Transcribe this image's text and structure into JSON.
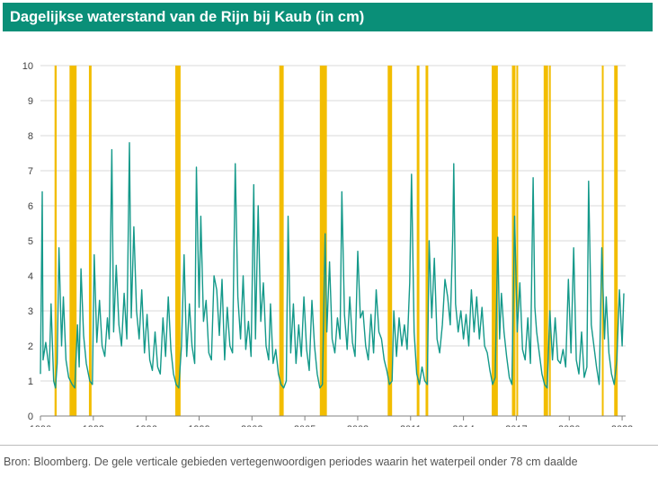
{
  "header": {
    "title": "Dagelijkse waterstand van de Rijn bij Kaub (in cm)"
  },
  "footer": {
    "source": "Bron: Bloomberg. De gele verticale gebieden vertegenwoordigen periodes waarin het waterpeil onder 78 cm daalde"
  },
  "colors": {
    "line": "#14998a",
    "highlight": "#f2bd00",
    "title_bg": "#0a8f78",
    "axis_text": "#404040"
  },
  "chart_data": {
    "type": "line",
    "title": "Dagelijkse waterstand van de Rijn bij Kaub (in cm)",
    "xlabel": "",
    "ylabel": "",
    "xlim": [
      1990,
      2023.2
    ],
    "ylim": [
      0,
      10
    ],
    "y_ticks": [
      "0",
      "1",
      "2",
      "3",
      "4",
      "5",
      "6",
      "7",
      "8",
      "9",
      "10"
    ],
    "x_ticks": [
      "1990",
      "1993",
      "1996",
      "1999",
      "2002",
      "2005",
      "2008",
      "2011",
      "2014",
      "2017",
      "2020",
      "2023"
    ],
    "gridlines": "horizontal",
    "low_water_periods": [
      [
        1990.8,
        1990.92
      ],
      [
        1991.65,
        1992.05
      ],
      [
        1992.75,
        1992.9
      ],
      [
        1997.65,
        1997.95
      ],
      [
        2003.55,
        2003.8
      ],
      [
        2005.85,
        2006.25
      ],
      [
        2009.7,
        2009.95
      ],
      [
        2011.35,
        2011.5
      ],
      [
        2011.85,
        2012.0
      ],
      [
        2015.6,
        2015.95
      ],
      [
        2016.75,
        2016.95
      ],
      [
        2017.0,
        2017.1
      ],
      [
        2018.55,
        2018.8
      ],
      [
        2018.85,
        2018.95
      ],
      [
        2021.85,
        2021.95
      ],
      [
        2022.55,
        2022.75
      ]
    ],
    "series": [
      {
        "name": "Waterstand Kaub",
        "x": [
          1990.0,
          1990.1,
          1990.15,
          1990.3,
          1990.5,
          1990.6,
          1990.75,
          1990.85,
          1990.95,
          1991.05,
          1991.2,
          1991.3,
          1991.45,
          1991.6,
          1991.8,
          1991.95,
          1992.1,
          1992.2,
          1992.3,
          1992.45,
          1992.6,
          1992.8,
          1992.95,
          1993.05,
          1993.2,
          1993.35,
          1993.5,
          1993.65,
          1993.8,
          1993.9,
          1994.05,
          1994.15,
          1994.3,
          1994.45,
          1994.6,
          1994.75,
          1994.9,
          1995.05,
          1995.15,
          1995.3,
          1995.45,
          1995.6,
          1995.75,
          1995.9,
          1996.05,
          1996.2,
          1996.35,
          1996.5,
          1996.65,
          1996.8,
          1996.95,
          1997.1,
          1997.25,
          1997.4,
          1997.55,
          1997.7,
          1997.85,
          1998.0,
          1998.15,
          1998.3,
          1998.45,
          1998.6,
          1998.75,
          1998.85,
          1999.0,
          1999.1,
          1999.25,
          1999.4,
          1999.55,
          1999.7,
          1999.85,
          2000.0,
          2000.15,
          2000.3,
          2000.45,
          2000.6,
          2000.75,
          2000.9,
          2001.05,
          2001.2,
          2001.35,
          2001.5,
          2001.65,
          2001.8,
          2001.95,
          2002.1,
          2002.2,
          2002.35,
          2002.5,
          2002.65,
          2002.8,
          2002.95,
          2003.05,
          2003.2,
          2003.35,
          2003.5,
          2003.65,
          2003.8,
          2003.95,
          2004.05,
          2004.2,
          2004.35,
          2004.5,
          2004.65,
          2004.8,
          2004.95,
          2005.1,
          2005.25,
          2005.4,
          2005.55,
          2005.7,
          2005.85,
          2006.0,
          2006.15,
          2006.25,
          2006.4,
          2006.55,
          2006.7,
          2006.85,
          2007.0,
          2007.1,
          2007.25,
          2007.4,
          2007.55,
          2007.7,
          2007.85,
          2008.0,
          2008.15,
          2008.3,
          2008.45,
          2008.6,
          2008.75,
          2008.9,
          2009.05,
          2009.2,
          2009.35,
          2009.5,
          2009.65,
          2009.8,
          2009.95,
          2010.05,
          2010.2,
          2010.35,
          2010.5,
          2010.65,
          2010.8,
          2010.95,
          2011.05,
          2011.2,
          2011.35,
          2011.5,
          2011.65,
          2011.8,
          2011.95,
          2012.05,
          2012.2,
          2012.35,
          2012.5,
          2012.65,
          2012.8,
          2012.95,
          2013.1,
          2013.25,
          2013.4,
          2013.45,
          2013.55,
          2013.7,
          2013.85,
          2014.0,
          2014.15,
          2014.3,
          2014.45,
          2014.6,
          2014.75,
          2014.9,
          2015.05,
          2015.2,
          2015.35,
          2015.5,
          2015.65,
          2015.8,
          2015.95,
          2016.05,
          2016.15,
          2016.3,
          2016.45,
          2016.6,
          2016.75,
          2016.9,
          2017.05,
          2017.2,
          2017.35,
          2017.5,
          2017.65,
          2017.8,
          2017.95,
          2018.05,
          2018.15,
          2018.3,
          2018.45,
          2018.6,
          2018.75,
          2018.9,
          2019.05,
          2019.2,
          2019.35,
          2019.5,
          2019.65,
          2019.8,
          2019.95,
          2020.1,
          2020.25,
          2020.4,
          2020.55,
          2020.7,
          2020.85,
          2021.0,
          2021.1,
          2021.25,
          2021.4,
          2021.55,
          2021.7,
          2021.85,
          2022.0,
          2022.1,
          2022.25,
          2022.4,
          2022.55,
          2022.7,
          2022.85,
          2023.0,
          2023.1
        ],
        "y": [
          1.2,
          6.4,
          1.6,
          2.1,
          1.3,
          3.2,
          1.0,
          0.8,
          1.5,
          4.8,
          2.0,
          3.4,
          1.6,
          1.1,
          0.9,
          0.8,
          2.6,
          1.4,
          4.2,
          2.3,
          1.5,
          1.0,
          0.9,
          4.6,
          2.1,
          3.3,
          2.0,
          1.7,
          2.8,
          2.2,
          7.6,
          2.4,
          4.3,
          2.6,
          2.0,
          3.5,
          2.2,
          7.8,
          2.8,
          5.4,
          3.0,
          2.2,
          3.6,
          1.8,
          2.9,
          1.6,
          1.3,
          2.4,
          1.4,
          1.2,
          2.8,
          1.7,
          3.4,
          1.9,
          1.2,
          0.9,
          0.8,
          2.0,
          4.6,
          1.7,
          3.2,
          2.0,
          1.5,
          7.1,
          3.1,
          5.7,
          2.7,
          3.3,
          1.8,
          1.6,
          4.0,
          3.6,
          2.3,
          3.9,
          1.6,
          3.1,
          2.0,
          1.8,
          7.2,
          3.4,
          2.2,
          4.0,
          1.9,
          2.7,
          1.7,
          6.6,
          2.2,
          6.0,
          2.7,
          3.8,
          2.0,
          1.6,
          3.2,
          1.5,
          1.9,
          1.2,
          0.9,
          0.8,
          1.0,
          5.7,
          1.8,
          3.2,
          1.5,
          2.6,
          1.7,
          3.4,
          1.9,
          1.3,
          3.3,
          2.0,
          1.2,
          0.8,
          0.9,
          5.2,
          2.4,
          4.4,
          2.2,
          1.8,
          2.8,
          2.2,
          6.4,
          2.9,
          1.9,
          3.4,
          2.1,
          1.7,
          4.7,
          2.8,
          3.0,
          2.0,
          1.6,
          2.9,
          1.8,
          3.6,
          2.4,
          2.2,
          1.6,
          1.3,
          0.9,
          1.0,
          3.0,
          1.7,
          2.8,
          2.0,
          2.6,
          1.9,
          3.8,
          6.9,
          2.4,
          1.2,
          0.9,
          1.4,
          1.0,
          0.9,
          5.0,
          2.8,
          4.5,
          2.2,
          1.8,
          2.6,
          3.9,
          3.4,
          2.6,
          5.3,
          7.2,
          3.2,
          2.4,
          3.0,
          2.2,
          2.9,
          2.0,
          3.6,
          2.4,
          3.4,
          2.2,
          3.1,
          2.0,
          1.8,
          1.3,
          0.9,
          1.1,
          5.1,
          2.2,
          3.5,
          2.4,
          1.7,
          1.1,
          0.9,
          5.7,
          2.4,
          3.8,
          1.9,
          1.6,
          2.8,
          1.5,
          6.8,
          3.1,
          2.4,
          1.8,
          1.2,
          0.9,
          0.8,
          3.0,
          1.6,
          2.8,
          1.6,
          1.5,
          1.9,
          1.4,
          3.9,
          1.8,
          4.8,
          1.6,
          1.2,
          2.4,
          1.1,
          1.4,
          6.7,
          2.6,
          2.0,
          1.4,
          0.9,
          4.8,
          2.2,
          3.4,
          1.8,
          1.2,
          0.9,
          1.6,
          3.6,
          2.0,
          3.5
        ]
      }
    ]
  }
}
